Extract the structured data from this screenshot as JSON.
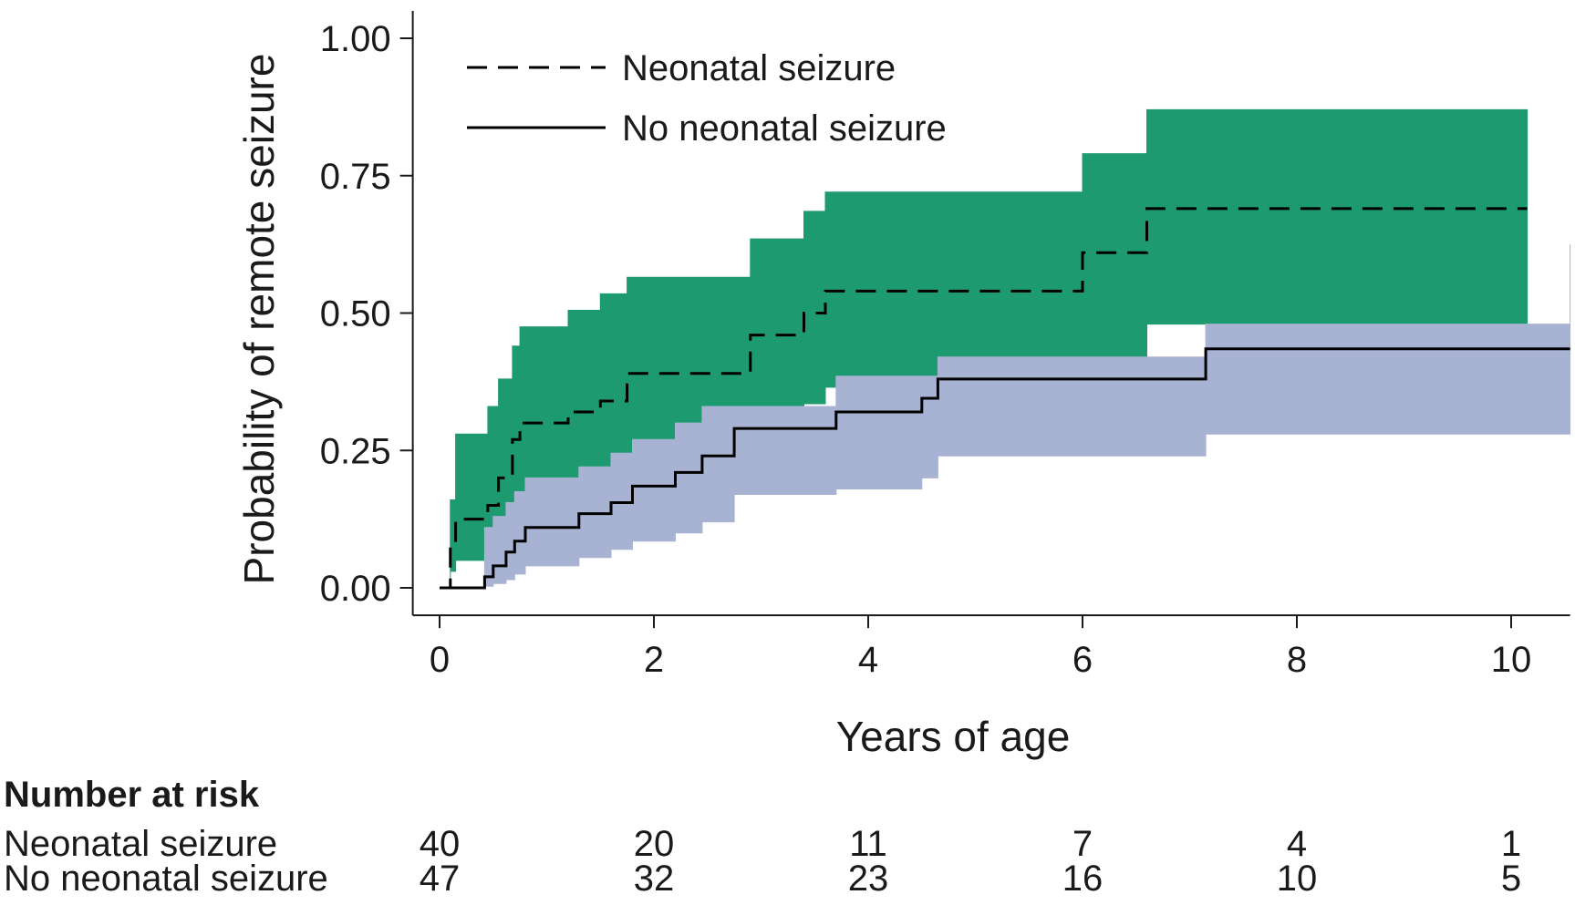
{
  "chart_data": {
    "type": "line",
    "subtype": "kaplan-meier-cumulative-incidence",
    "title": "",
    "xlabel": "Years of age",
    "ylabel": "Probability of remote seizure",
    "xlim": [
      -0.25,
      10.55
    ],
    "ylim": [
      -0.05,
      1.05
    ],
    "x_ticks": [
      0,
      2,
      4,
      6,
      8,
      10
    ],
    "x_tick_labels": [
      "0",
      "2",
      "4",
      "6",
      "8",
      "10"
    ],
    "y_ticks": [
      0,
      0.25,
      0.5,
      0.75,
      1.0
    ],
    "y_tick_labels": [
      "0.00",
      "0.25",
      "0.50",
      "0.75",
      "1.00"
    ],
    "grid": false,
    "legend_position": "top-left",
    "series": [
      {
        "name": "Neonatal seizure",
        "line_style": "dashed",
        "color": "#000000",
        "band_color": "#1e9a70",
        "x": [
          0,
          0.1,
          0.15,
          0.45,
          0.55,
          0.68,
          0.75,
          1.2,
          1.5,
          1.75,
          2.9,
          3.4,
          3.6,
          6.0,
          6.6,
          10.15
        ],
        "y": [
          0,
          0.08,
          0.125,
          0.15,
          0.2,
          0.27,
          0.3,
          0.32,
          0.34,
          0.39,
          0.46,
          0.5,
          0.54,
          0.61,
          0.69,
          0.69
        ],
        "ci_lower": [
          0,
          0.03,
          0.05,
          0.06,
          0.08,
          0.11,
          0.135,
          0.175,
          0.205,
          0.235,
          0.28,
          0.335,
          0.365,
          0.39,
          0.48,
          0.48
        ],
        "ci_upper": [
          0,
          0.16,
          0.28,
          0.33,
          0.38,
          0.44,
          0.475,
          0.505,
          0.535,
          0.565,
          0.635,
          0.685,
          0.72,
          0.79,
          0.87,
          0.87
        ]
      },
      {
        "name": "No neonatal seizure",
        "line_style": "solid",
        "color": "#000000",
        "band_color": "#a8b2d2",
        "x": [
          0,
          0.42,
          0.5,
          0.62,
          0.7,
          0.8,
          1.3,
          1.6,
          1.8,
          2.2,
          2.45,
          2.75,
          3.7,
          4.5,
          4.65,
          7.15,
          10.55
        ],
        "y": [
          0,
          0.02,
          0.04,
          0.065,
          0.085,
          0.11,
          0.135,
          0.155,
          0.185,
          0.21,
          0.24,
          0.29,
          0.32,
          0.345,
          0.38,
          0.435,
          0.435
        ],
        "ci_lower": [
          0,
          0.003,
          0.008,
          0.015,
          0.025,
          0.04,
          0.055,
          0.07,
          0.085,
          0.1,
          0.12,
          0.17,
          0.18,
          0.2,
          0.24,
          0.28,
          0.28
        ],
        "ci_upper": [
          0,
          0.11,
          0.13,
          0.155,
          0.175,
          0.2,
          0.22,
          0.245,
          0.27,
          0.3,
          0.33,
          0.33,
          0.385,
          0.385,
          0.42,
          0.48,
          0.625
        ]
      }
    ],
    "risk_table": {
      "title": "Number at risk",
      "times": [
        0,
        2,
        4,
        6,
        8,
        10
      ],
      "rows": [
        {
          "label": "Neonatal seizure",
          "counts": [
            40,
            20,
            11,
            7,
            4,
            1
          ]
        },
        {
          "label": "No neonatal seizure",
          "counts": [
            47,
            32,
            23,
            16,
            10,
            5
          ]
        }
      ]
    }
  }
}
